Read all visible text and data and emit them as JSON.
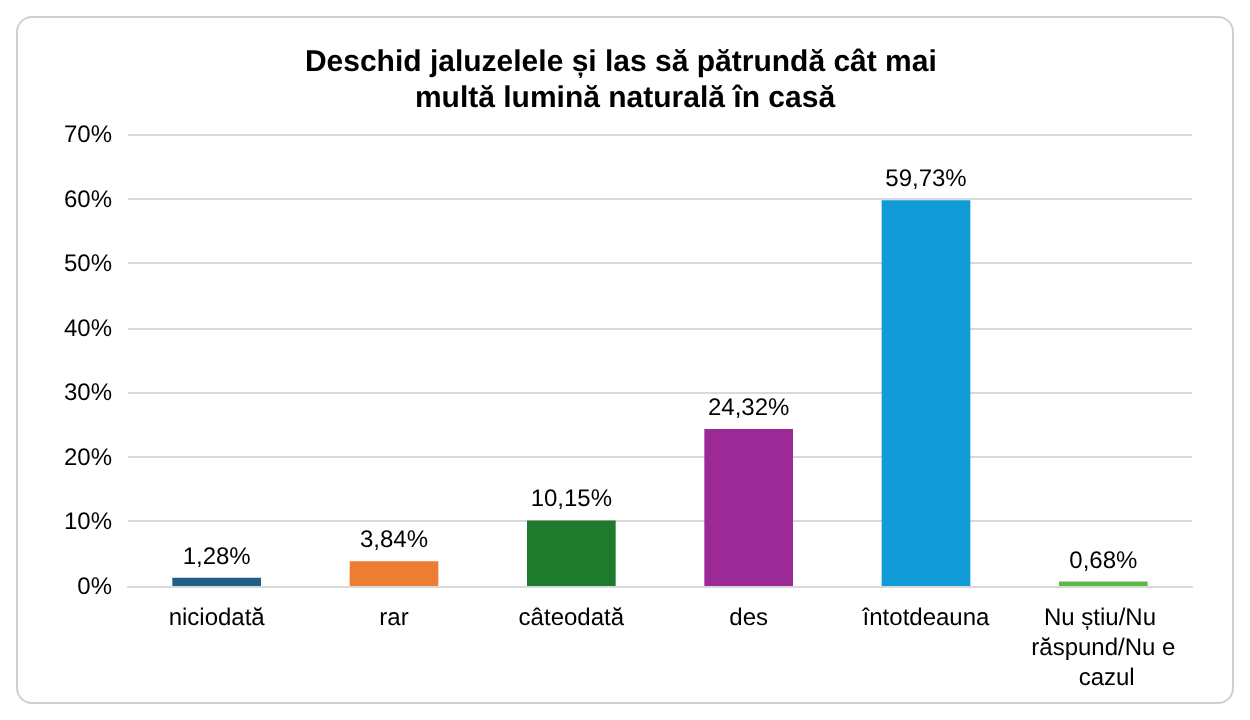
{
  "chart_data": {
    "type": "bar",
    "title": "Deschid jaluzelele și las să pătrundă cât mai multă lumină naturală în casă",
    "categories": [
      "niciodată",
      "rar",
      "câteodată",
      "des",
      "întotdeauna",
      "Nu știu/Nu răspund/Nu e cazul"
    ],
    "values": [
      1.28,
      3.84,
      10.15,
      24.32,
      59.73,
      0.68
    ],
    "colors": [
      "#1f5f88",
      "#ed7d31",
      "#1e7a2c",
      "#9c2a96",
      "#109bd6",
      "#5cb848"
    ],
    "value_labels": [
      "1,28%",
      "3,84%",
      "10,15%",
      "24,32%",
      "59,73%",
      "0,68%"
    ],
    "ylim": [
      0,
      70
    ],
    "yticks": [
      {
        "value": 0,
        "label": "0%"
      },
      {
        "value": 10,
        "label": "10%"
      },
      {
        "value": 20,
        "label": "20%"
      },
      {
        "value": 30,
        "label": "30%"
      },
      {
        "value": 40,
        "label": "40%"
      },
      {
        "value": 50,
        "label": "50%"
      },
      {
        "value": 60,
        "label": "60%"
      },
      {
        "value": 70,
        "label": "70%"
      }
    ],
    "grid": "y"
  }
}
